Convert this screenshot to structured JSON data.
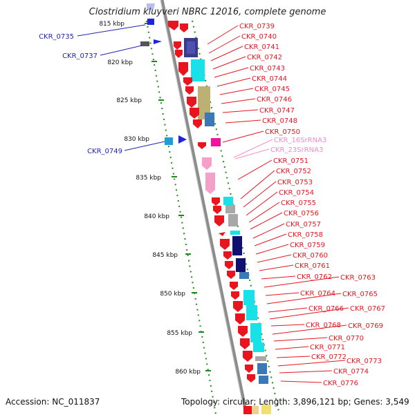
{
  "title": "Clostridium kluyveri NBRC 12016, complete genome",
  "footer": {
    "accession": "Accession: NC_011837",
    "summary": "Topology: circular; Length: 3,896,121 bp; Genes: 3,549"
  },
  "colors": {
    "backbone": "#8c8c8c",
    "ruler": "#1a8a1a",
    "label_red": "#e8141e",
    "label_blue": "#1f22b4",
    "label_pink": "#f08cc8"
  },
  "ruler_ticks": [
    "815 kbp",
    "820 kbp",
    "825 kbp",
    "830 kbp",
    "835 kbp",
    "840 kbp",
    "845 kbp",
    "850 kbp",
    "855 kbp",
    "860 kbp"
  ],
  "left_labels": [
    "CKR_0735",
    "CKR_0737",
    "CKR_0749"
  ],
  "right_labels": [
    {
      "text": "CKR_0739",
      "color": "red"
    },
    {
      "text": "CKR_0740",
      "color": "red"
    },
    {
      "text": "CKR_0741",
      "color": "red"
    },
    {
      "text": "CKR_0742",
      "color": "red"
    },
    {
      "text": "CKR_0743",
      "color": "red"
    },
    {
      "text": "CKR_0744",
      "color": "red"
    },
    {
      "text": "CKR_0745",
      "color": "red"
    },
    {
      "text": "CKR_0746",
      "color": "red"
    },
    {
      "text": "CKR_0747",
      "color": "red"
    },
    {
      "text": "CKR_0748",
      "color": "red"
    },
    {
      "text": "CKR_0750",
      "color": "red"
    },
    {
      "text": "CKR_16SrRNA3",
      "color": "pink"
    },
    {
      "text": "CKR_23SrRNA3",
      "color": "pink"
    },
    {
      "text": "CKR_0751",
      "color": "red"
    },
    {
      "text": "CKR_0752",
      "color": "red"
    },
    {
      "text": "CKR_0753",
      "color": "red"
    },
    {
      "text": "CKR_0754",
      "color": "red"
    },
    {
      "text": "CKR_0755",
      "color": "red"
    },
    {
      "text": "CKR_0756",
      "color": "red"
    },
    {
      "text": "CKR_0757",
      "color": "red"
    },
    {
      "text": "CKR_0758",
      "color": "red"
    },
    {
      "text": "CKR_0759",
      "color": "red"
    },
    {
      "text": "CKR_0760",
      "color": "red"
    },
    {
      "text": "CKR_0761",
      "color": "red"
    },
    {
      "text": "CKR_0762",
      "color": "red"
    },
    {
      "text": "CKR_0763",
      "color": "red"
    },
    {
      "text": "CKR_0764",
      "color": "red"
    },
    {
      "text": "CKR_0765",
      "color": "red"
    },
    {
      "text": "CKR_0766",
      "color": "red"
    },
    {
      "text": "CKR_0767",
      "color": "red"
    },
    {
      "text": "CKR_0768",
      "color": "red"
    },
    {
      "text": "CKR_0769",
      "color": "red"
    },
    {
      "text": "CKR_0770",
      "color": "red"
    },
    {
      "text": "CKR_0771",
      "color": "red"
    },
    {
      "text": "CKR_0772",
      "color": "red"
    },
    {
      "text": "CKR_0773",
      "color": "red"
    },
    {
      "text": "CKR_0774",
      "color": "red"
    },
    {
      "text": "CKR_0776",
      "color": "red"
    }
  ]
}
